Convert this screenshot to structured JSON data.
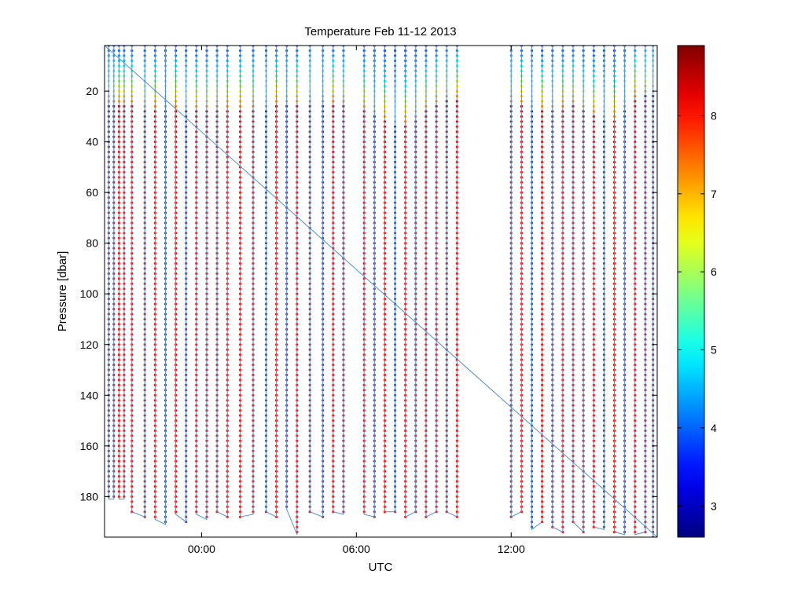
{
  "chart_data": {
    "type": "scatter",
    "title": "Temperature Feb 11-12 2013",
    "xlabel": "UTC",
    "ylabel": "Pressure [dbar]",
    "x_unit": "hours relative to 00:00 UTC Feb 12 2013",
    "xlim": [
      -3.76,
      17.66
    ],
    "ylim": [
      196,
      2
    ],
    "y_reversed": true,
    "x_ticks": [
      {
        "value": 0,
        "label": "00:00"
      },
      {
        "value": 6,
        "label": "06:00"
      },
      {
        "value": 12,
        "label": "12:00"
      }
    ],
    "y_ticks": [
      20,
      40,
      60,
      80,
      100,
      120,
      140,
      160,
      180
    ],
    "colorbar": {
      "label": "",
      "min": 2.6,
      "max": 8.9,
      "ticks": [
        3,
        4,
        5,
        6,
        7,
        8
      ],
      "colormap": "jet"
    },
    "series_description": "Glider profiles: temperature (color) vs pressure along each dive/climb; surface ~3-6 degC above a thermocline at ~20-35 dbar, ~8-8.9 degC below",
    "profiles": [
      {
        "x": -3.6,
        "max_p": 181,
        "thermo": 25
      },
      {
        "x": -3.4,
        "max_p": 181,
        "thermo": 25
      },
      {
        "x": -3.2,
        "max_p": 181,
        "thermo": 26
      },
      {
        "x": -3.0,
        "max_p": 181,
        "thermo": 26
      },
      {
        "x": -2.7,
        "max_p": 186,
        "thermo": 26
      },
      {
        "x": -2.2,
        "max_p": 188,
        "thermo": 27
      },
      {
        "x": -1.8,
        "max_p": 189,
        "thermo": 27
      },
      {
        "x": -1.4,
        "max_p": 191,
        "thermo": 27
      },
      {
        "x": -1.0,
        "max_p": 187,
        "thermo": 27
      },
      {
        "x": -0.6,
        "max_p": 190,
        "thermo": 28
      },
      {
        "x": -0.2,
        "max_p": 187,
        "thermo": 28
      },
      {
        "x": 0.2,
        "max_p": 189,
        "thermo": 28
      },
      {
        "x": 0.6,
        "max_p": 186,
        "thermo": 27
      },
      {
        "x": 1.0,
        "max_p": 188,
        "thermo": 27
      },
      {
        "x": 1.5,
        "max_p": 188,
        "thermo": 27
      },
      {
        "x": 2.0,
        "max_p": 187,
        "thermo": 27
      },
      {
        "x": 2.5,
        "max_p": 186,
        "thermo": 27
      },
      {
        "x": 2.9,
        "max_p": 188,
        "thermo": 26
      },
      {
        "x": 3.3,
        "max_p": 185,
        "thermo": 26
      },
      {
        "x": 3.7,
        "max_p": 195,
        "thermo": 26
      },
      {
        "x": 4.2,
        "max_p": 186,
        "thermo": 25
      },
      {
        "x": 4.7,
        "max_p": 188,
        "thermo": 25
      },
      {
        "x": 5.1,
        "max_p": 186,
        "thermo": 25
      },
      {
        "x": 5.5,
        "max_p": 187,
        "thermo": 26
      },
      {
        "x": 6.3,
        "max_p": 187,
        "thermo": 28
      },
      {
        "x": 6.7,
        "max_p": 188,
        "thermo": 30
      },
      {
        "x": 7.1,
        "max_p": 186,
        "thermo": 32
      },
      {
        "x": 7.5,
        "max_p": 186,
        "thermo": 34
      },
      {
        "x": 7.9,
        "max_p": 188,
        "thermo": 33
      },
      {
        "x": 8.3,
        "max_p": 186,
        "thermo": 31
      },
      {
        "x": 8.7,
        "max_p": 188,
        "thermo": 28
      },
      {
        "x": 9.1,
        "max_p": 186,
        "thermo": 26
      },
      {
        "x": 9.5,
        "max_p": 186,
        "thermo": 24
      },
      {
        "x": 9.9,
        "max_p": 188,
        "thermo": 24
      },
      {
        "x": 12.0,
        "max_p": 188,
        "thermo": 25
      },
      {
        "x": 12.4,
        "max_p": 186,
        "thermo": 26
      },
      {
        "x": 12.8,
        "max_p": 193,
        "thermo": 27
      },
      {
        "x": 13.2,
        "max_p": 190,
        "thermo": 28
      },
      {
        "x": 13.6,
        "max_p": 192,
        "thermo": 28
      },
      {
        "x": 14.0,
        "max_p": 194,
        "thermo": 27
      },
      {
        "x": 14.4,
        "max_p": 190,
        "thermo": 26
      },
      {
        "x": 14.8,
        "max_p": 194,
        "thermo": 28
      },
      {
        "x": 15.2,
        "max_p": 192,
        "thermo": 30
      },
      {
        "x": 15.6,
        "max_p": 193,
        "thermo": 31
      },
      {
        "x": 16.0,
        "max_p": 194,
        "thermo": 31
      },
      {
        "x": 16.4,
        "max_p": 195,
        "thermo": 27
      },
      {
        "x": 16.8,
        "max_p": 195,
        "thermo": 23
      },
      {
        "x": 17.2,
        "max_p": 194,
        "thermo": 22
      },
      {
        "x": 17.5,
        "max_p": 196,
        "thermo": 22
      }
    ],
    "track_line": {
      "color": "#4f8fd6",
      "diagonal": {
        "x": [
          -3.76,
          17.66
        ],
        "y": [
          2,
          196
        ]
      }
    },
    "colors": {
      "axis": "#000000",
      "track": "#4f8fd6"
    }
  }
}
